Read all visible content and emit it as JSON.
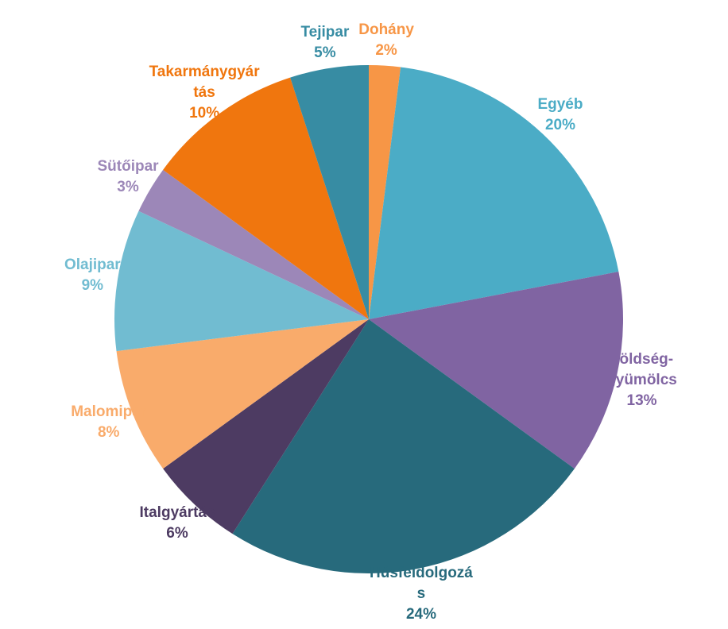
{
  "chart_data": {
    "type": "pie",
    "categories": [
      "Dohány",
      "Egyéb",
      "Zöldség-gyümölcs",
      "Húsfeldolgozás",
      "Italgyártás",
      "Malomipar",
      "Olajipar",
      "Sütőipar",
      "Takarmánygyártás",
      "Tejipar"
    ],
    "values": [
      2,
      20,
      13,
      24,
      6,
      8,
      9,
      3,
      10,
      5
    ],
    "value_labels": [
      "2%",
      "20%",
      "13%",
      "24%",
      "6%",
      "8%",
      "9%",
      "3%",
      "10%",
      "5%"
    ],
    "colors": [
      "#f79646",
      "#4bacc6",
      "#8064a2",
      "#276a7c",
      "#4d3b62",
      "#f9ab6b",
      "#71bcd1",
      "#9c87b8",
      "#f0760e",
      "#378ca3"
    ]
  }
}
